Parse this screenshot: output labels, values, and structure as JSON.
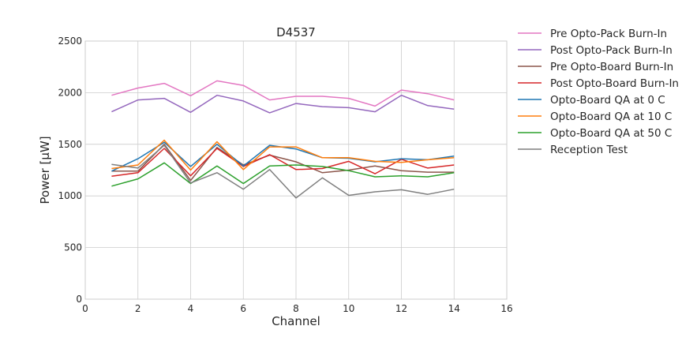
{
  "chart_data": {
    "type": "line",
    "title": "D4537",
    "xlabel": "Channel",
    "ylabel": "Power [μW]",
    "xlim": [
      0,
      16
    ],
    "ylim": [
      0,
      2500
    ],
    "xticks": [
      "0",
      "2",
      "4",
      "6",
      "8",
      "10",
      "12",
      "14",
      "16"
    ],
    "yticks": [
      "0",
      "500",
      "1000",
      "1500",
      "2000",
      "2500"
    ],
    "grid": true,
    "legend_position": "outside-right",
    "x": [
      1,
      2,
      3,
      4,
      5,
      6,
      7,
      8,
      9,
      10,
      11,
      12,
      13,
      14
    ],
    "series": [
      {
        "name": "Pre Opto-Pack Burn-In",
        "color": "#e377c2",
        "values": [
          1975,
          2045,
          2090,
          1970,
          2115,
          2070,
          1930,
          1965,
          1965,
          1945,
          1870,
          2025,
          1990,
          1930
        ]
      },
      {
        "name": "Post Opto-Pack Burn-In",
        "color": "#9467bd",
        "values": [
          1815,
          1930,
          1945,
          1810,
          1975,
          1920,
          1805,
          1895,
          1865,
          1855,
          1815,
          1975,
          1875,
          1840
        ]
      },
      {
        "name": "Pre Opto-Board Burn-In",
        "color": "#8c564b",
        "values": [
          1240,
          1240,
          1500,
          1150,
          1470,
          1300,
          1395,
          1330,
          1225,
          1250,
          1290,
          1245,
          1230,
          1230
        ]
      },
      {
        "name": "Post Opto-Board Burn-In",
        "color": "#d62728",
        "values": [
          1190,
          1225,
          1460,
          1195,
          1460,
          1285,
          1400,
          1255,
          1265,
          1335,
          1215,
          1355,
          1270,
          1300
        ]
      },
      {
        "name": "Opto-Board QA at 0 C",
        "color": "#1f77b4",
        "values": [
          1240,
          1360,
          1520,
          1285,
          1500,
          1290,
          1490,
          1455,
          1370,
          1365,
          1330,
          1360,
          1350,
          1385
        ]
      },
      {
        "name": "Opto-Board QA at 10 C",
        "color": "#ff7f0e",
        "values": [
          1265,
          1300,
          1540,
          1250,
          1525,
          1255,
          1475,
          1475,
          1370,
          1370,
          1335,
          1325,
          1350,
          1370
        ]
      },
      {
        "name": "Opto-Board QA at 50 C",
        "color": "#2ca02c",
        "values": [
          1095,
          1165,
          1320,
          1120,
          1290,
          1120,
          1290,
          1300,
          1285,
          1245,
          1185,
          1195,
          1185,
          1225
        ]
      },
      {
        "name": "Reception Test",
        "color": "#7f7f7f",
        "values": [
          1305,
          1270,
          1490,
          1125,
          1225,
          1065,
          1255,
          980,
          1175,
          1005,
          1040,
          1060,
          1015,
          1065
        ]
      }
    ]
  }
}
